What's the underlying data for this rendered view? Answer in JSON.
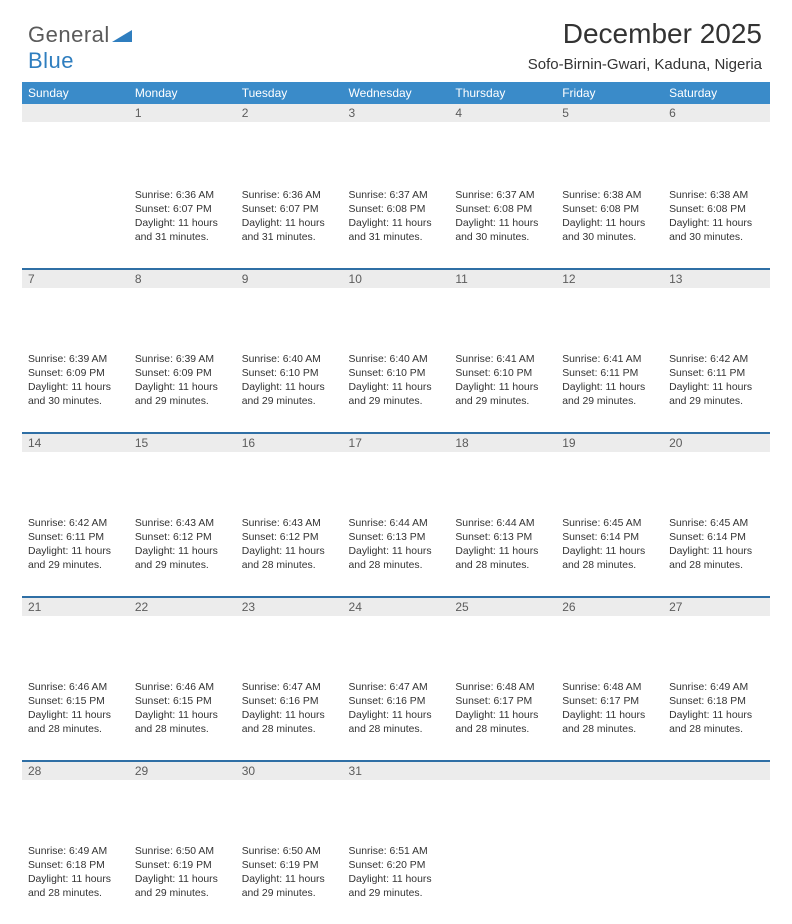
{
  "brand": {
    "part1": "General",
    "part2": "Blue"
  },
  "title": "December 2025",
  "subtitle": "Sofo-Birnin-Gwari, Kaduna, Nigeria",
  "colors": {
    "header_bg": "#3a8bc9",
    "header_text": "#ffffff",
    "daynum_bg": "#ececec",
    "row_divider": "#2f6fa5",
    "body_text": "#333333",
    "brand_gray": "#5a5a5a",
    "brand_blue": "#2f7ebf"
  },
  "fonts": {
    "title_size_pt": 21,
    "subtitle_size_pt": 11,
    "header_size_pt": 9,
    "cell_size_pt": 8
  },
  "week_days": [
    "Sunday",
    "Monday",
    "Tuesday",
    "Wednesday",
    "Thursday",
    "Friday",
    "Saturday"
  ],
  "weeks": [
    [
      {
        "n": "",
        "sunrise": "",
        "sunset": "",
        "day1": "",
        "day2": ""
      },
      {
        "n": "1",
        "sunrise": "Sunrise: 6:36 AM",
        "sunset": "Sunset: 6:07 PM",
        "day1": "Daylight: 11 hours",
        "day2": "and 31 minutes."
      },
      {
        "n": "2",
        "sunrise": "Sunrise: 6:36 AM",
        "sunset": "Sunset: 6:07 PM",
        "day1": "Daylight: 11 hours",
        "day2": "and 31 minutes."
      },
      {
        "n": "3",
        "sunrise": "Sunrise: 6:37 AM",
        "sunset": "Sunset: 6:08 PM",
        "day1": "Daylight: 11 hours",
        "day2": "and 31 minutes."
      },
      {
        "n": "4",
        "sunrise": "Sunrise: 6:37 AM",
        "sunset": "Sunset: 6:08 PM",
        "day1": "Daylight: 11 hours",
        "day2": "and 30 minutes."
      },
      {
        "n": "5",
        "sunrise": "Sunrise: 6:38 AM",
        "sunset": "Sunset: 6:08 PM",
        "day1": "Daylight: 11 hours",
        "day2": "and 30 minutes."
      },
      {
        "n": "6",
        "sunrise": "Sunrise: 6:38 AM",
        "sunset": "Sunset: 6:08 PM",
        "day1": "Daylight: 11 hours",
        "day2": "and 30 minutes."
      }
    ],
    [
      {
        "n": "7",
        "sunrise": "Sunrise: 6:39 AM",
        "sunset": "Sunset: 6:09 PM",
        "day1": "Daylight: 11 hours",
        "day2": "and 30 minutes."
      },
      {
        "n": "8",
        "sunrise": "Sunrise: 6:39 AM",
        "sunset": "Sunset: 6:09 PM",
        "day1": "Daylight: 11 hours",
        "day2": "and 29 minutes."
      },
      {
        "n": "9",
        "sunrise": "Sunrise: 6:40 AM",
        "sunset": "Sunset: 6:10 PM",
        "day1": "Daylight: 11 hours",
        "day2": "and 29 minutes."
      },
      {
        "n": "10",
        "sunrise": "Sunrise: 6:40 AM",
        "sunset": "Sunset: 6:10 PM",
        "day1": "Daylight: 11 hours",
        "day2": "and 29 minutes."
      },
      {
        "n": "11",
        "sunrise": "Sunrise: 6:41 AM",
        "sunset": "Sunset: 6:10 PM",
        "day1": "Daylight: 11 hours",
        "day2": "and 29 minutes."
      },
      {
        "n": "12",
        "sunrise": "Sunrise: 6:41 AM",
        "sunset": "Sunset: 6:11 PM",
        "day1": "Daylight: 11 hours",
        "day2": "and 29 minutes."
      },
      {
        "n": "13",
        "sunrise": "Sunrise: 6:42 AM",
        "sunset": "Sunset: 6:11 PM",
        "day1": "Daylight: 11 hours",
        "day2": "and 29 minutes."
      }
    ],
    [
      {
        "n": "14",
        "sunrise": "Sunrise: 6:42 AM",
        "sunset": "Sunset: 6:11 PM",
        "day1": "Daylight: 11 hours",
        "day2": "and 29 minutes."
      },
      {
        "n": "15",
        "sunrise": "Sunrise: 6:43 AM",
        "sunset": "Sunset: 6:12 PM",
        "day1": "Daylight: 11 hours",
        "day2": "and 29 minutes."
      },
      {
        "n": "16",
        "sunrise": "Sunrise: 6:43 AM",
        "sunset": "Sunset: 6:12 PM",
        "day1": "Daylight: 11 hours",
        "day2": "and 28 minutes."
      },
      {
        "n": "17",
        "sunrise": "Sunrise: 6:44 AM",
        "sunset": "Sunset: 6:13 PM",
        "day1": "Daylight: 11 hours",
        "day2": "and 28 minutes."
      },
      {
        "n": "18",
        "sunrise": "Sunrise: 6:44 AM",
        "sunset": "Sunset: 6:13 PM",
        "day1": "Daylight: 11 hours",
        "day2": "and 28 minutes."
      },
      {
        "n": "19",
        "sunrise": "Sunrise: 6:45 AM",
        "sunset": "Sunset: 6:14 PM",
        "day1": "Daylight: 11 hours",
        "day2": "and 28 minutes."
      },
      {
        "n": "20",
        "sunrise": "Sunrise: 6:45 AM",
        "sunset": "Sunset: 6:14 PM",
        "day1": "Daylight: 11 hours",
        "day2": "and 28 minutes."
      }
    ],
    [
      {
        "n": "21",
        "sunrise": "Sunrise: 6:46 AM",
        "sunset": "Sunset: 6:15 PM",
        "day1": "Daylight: 11 hours",
        "day2": "and 28 minutes."
      },
      {
        "n": "22",
        "sunrise": "Sunrise: 6:46 AM",
        "sunset": "Sunset: 6:15 PM",
        "day1": "Daylight: 11 hours",
        "day2": "and 28 minutes."
      },
      {
        "n": "23",
        "sunrise": "Sunrise: 6:47 AM",
        "sunset": "Sunset: 6:16 PM",
        "day1": "Daylight: 11 hours",
        "day2": "and 28 minutes."
      },
      {
        "n": "24",
        "sunrise": "Sunrise: 6:47 AM",
        "sunset": "Sunset: 6:16 PM",
        "day1": "Daylight: 11 hours",
        "day2": "and 28 minutes."
      },
      {
        "n": "25",
        "sunrise": "Sunrise: 6:48 AM",
        "sunset": "Sunset: 6:17 PM",
        "day1": "Daylight: 11 hours",
        "day2": "and 28 minutes."
      },
      {
        "n": "26",
        "sunrise": "Sunrise: 6:48 AM",
        "sunset": "Sunset: 6:17 PM",
        "day1": "Daylight: 11 hours",
        "day2": "and 28 minutes."
      },
      {
        "n": "27",
        "sunrise": "Sunrise: 6:49 AM",
        "sunset": "Sunset: 6:18 PM",
        "day1": "Daylight: 11 hours",
        "day2": "and 28 minutes."
      }
    ],
    [
      {
        "n": "28",
        "sunrise": "Sunrise: 6:49 AM",
        "sunset": "Sunset: 6:18 PM",
        "day1": "Daylight: 11 hours",
        "day2": "and 28 minutes."
      },
      {
        "n": "29",
        "sunrise": "Sunrise: 6:50 AM",
        "sunset": "Sunset: 6:19 PM",
        "day1": "Daylight: 11 hours",
        "day2": "and 29 minutes."
      },
      {
        "n": "30",
        "sunrise": "Sunrise: 6:50 AM",
        "sunset": "Sunset: 6:19 PM",
        "day1": "Daylight: 11 hours",
        "day2": "and 29 minutes."
      },
      {
        "n": "31",
        "sunrise": "Sunrise: 6:51 AM",
        "sunset": "Sunset: 6:20 PM",
        "day1": "Daylight: 11 hours",
        "day2": "and 29 minutes."
      },
      {
        "n": "",
        "sunrise": "",
        "sunset": "",
        "day1": "",
        "day2": ""
      },
      {
        "n": "",
        "sunrise": "",
        "sunset": "",
        "day1": "",
        "day2": ""
      },
      {
        "n": "",
        "sunrise": "",
        "sunset": "",
        "day1": "",
        "day2": ""
      }
    ]
  ]
}
